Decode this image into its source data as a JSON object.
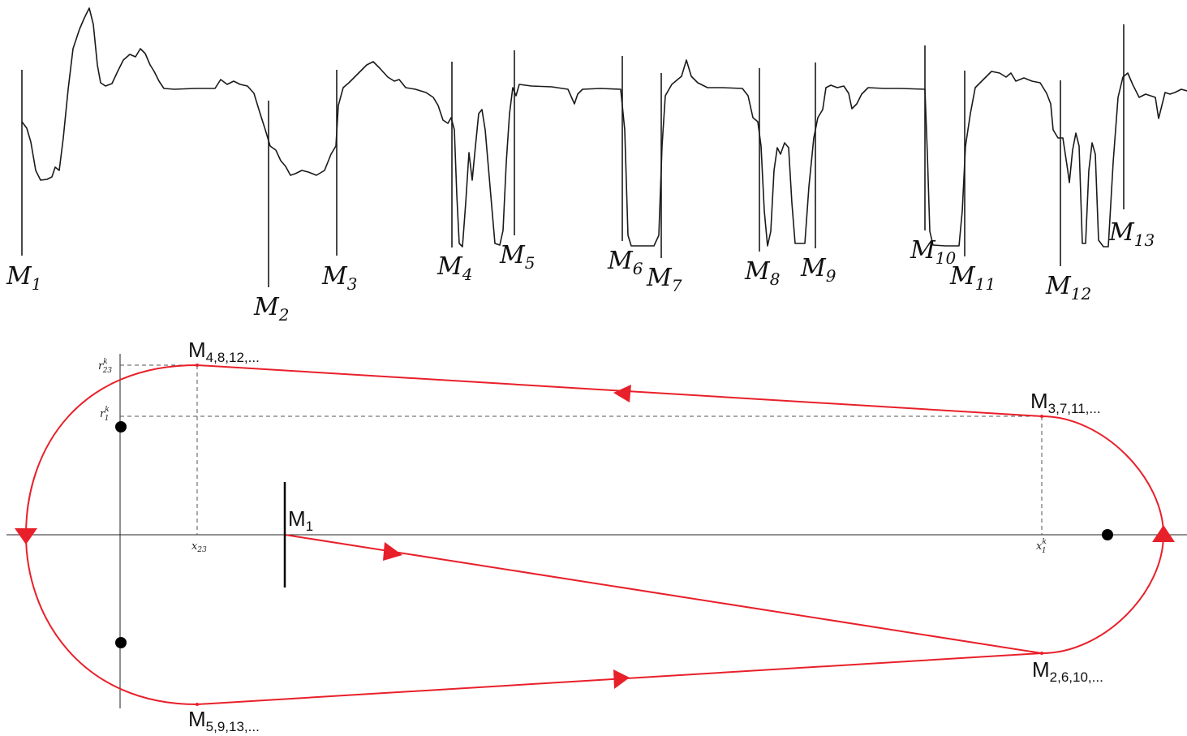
{
  "top_panel": {
    "markers": [
      {
        "name": "M",
        "sub": "1"
      },
      {
        "name": "M",
        "sub": "2"
      },
      {
        "name": "M",
        "sub": "3"
      },
      {
        "name": "M",
        "sub": "4"
      },
      {
        "name": "M",
        "sub": "5"
      },
      {
        "name": "M",
        "sub": "6"
      },
      {
        "name": "M",
        "sub": "7"
      },
      {
        "name": "M",
        "sub": "8"
      },
      {
        "name": "M",
        "sub": "9"
      },
      {
        "name": "M",
        "sub": "10"
      },
      {
        "name": "M",
        "sub": "11"
      },
      {
        "name": "M",
        "sub": "12"
      },
      {
        "name": "M",
        "sub": "13"
      }
    ]
  },
  "bottom_panel": {
    "orbit_color": "#e8202a",
    "axis_labels": {
      "r23_main": "r",
      "r23_sup": "k",
      "r23_sub": "23",
      "r1_main": "r",
      "r1_sup": "k",
      "r1_sub": "1",
      "x23_main": "x",
      "x23_sub": "23",
      "x1_main": "x",
      "x1_sup": "k",
      "x1_sub": "1"
    },
    "points": {
      "m1": {
        "main": "M",
        "sub": "1"
      },
      "m4": {
        "main": "M",
        "sub": "4,8,12,..."
      },
      "m3": {
        "main": "M",
        "sub": "3,7,11,..."
      },
      "m2": {
        "main": "M",
        "sub": "2,6,10,..."
      },
      "m5": {
        "main": "M",
        "sub": "5,9,13,..."
      }
    }
  }
}
